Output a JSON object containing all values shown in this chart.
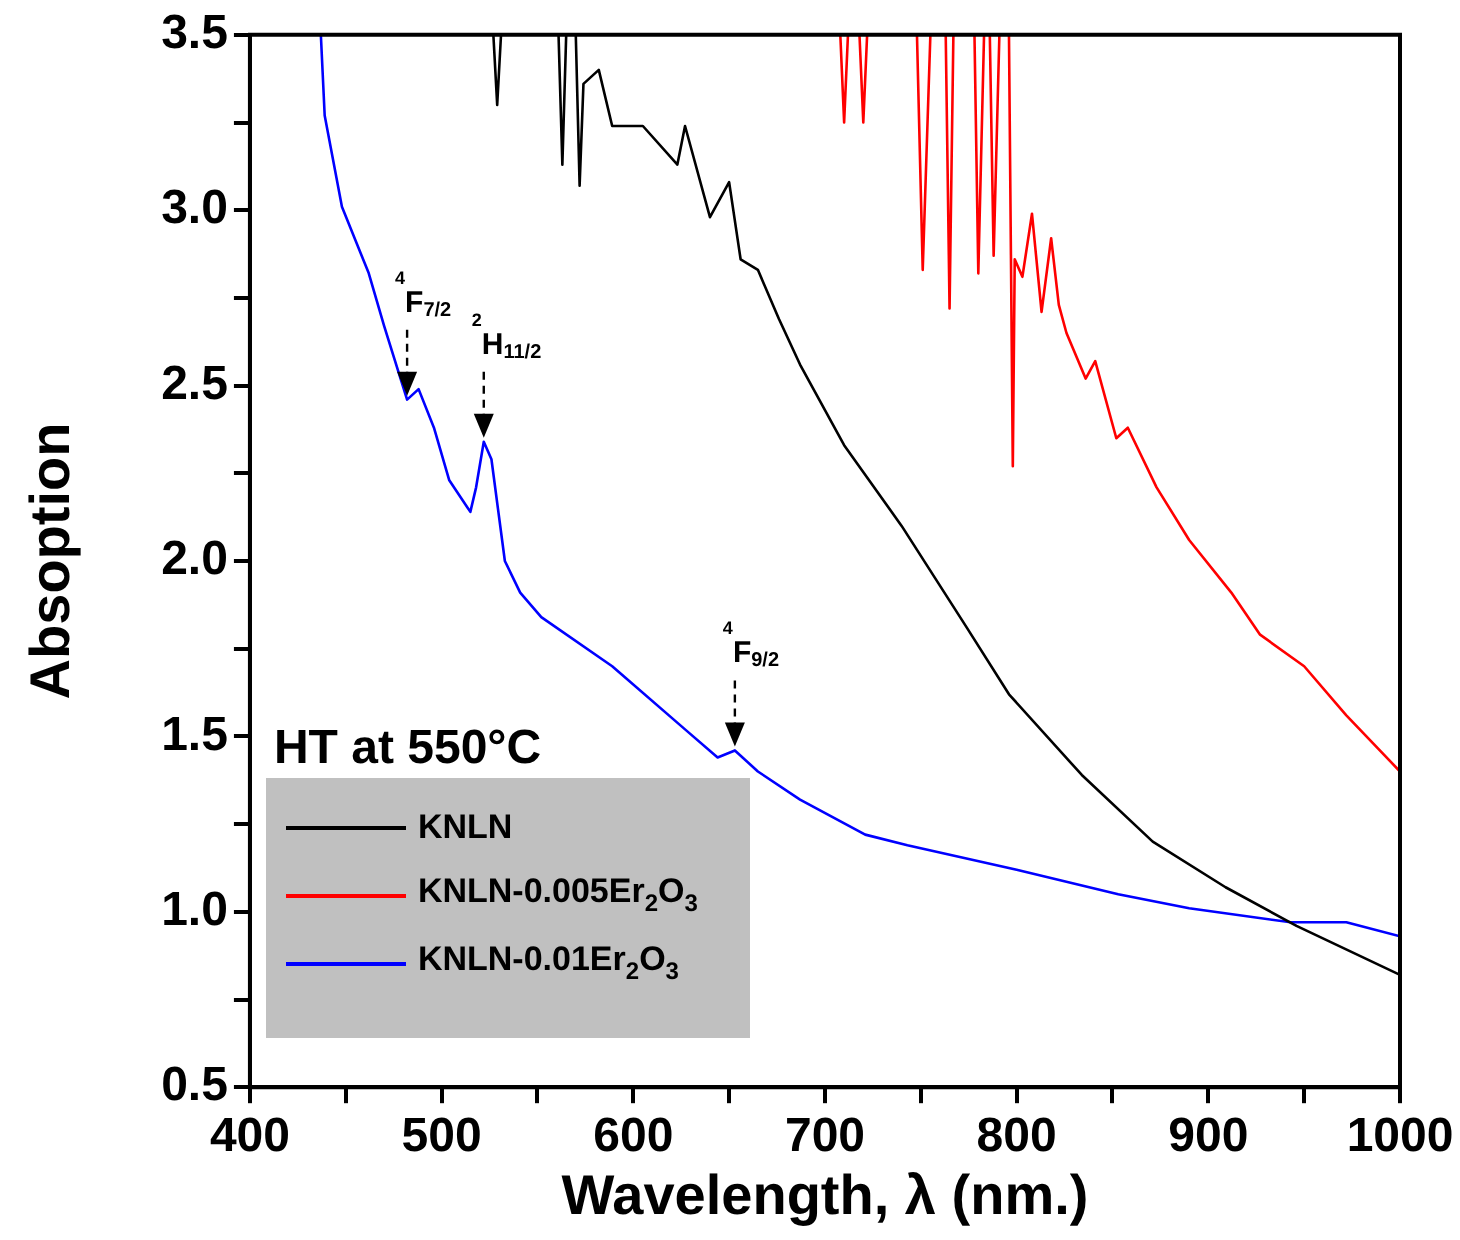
{
  "chart_data": {
    "type": "line",
    "xlabel": "Wavelength, λ (nm.)",
    "ylabel": "Absoption",
    "xlim": [
      400,
      1000
    ],
    "xticks": [
      400,
      {
        "value": 450,
        "label": null
      },
      500,
      {
        "value": 550,
        "label": null
      },
      600,
      {
        "value": 650,
        "label": null
      },
      700,
      {
        "value": 750,
        "label": null
      },
      800,
      {
        "value": 850,
        "label": null
      },
      900,
      {
        "value": 950,
        "label": null
      },
      1000
    ],
    "ylim": [
      0.5,
      3.5
    ],
    "yticks": [
      0.5,
      {
        "value": 0.75,
        "label": null
      },
      {
        "value": 1,
        "label": "1.0"
      },
      {
        "value": 1.25,
        "label": null
      },
      1.5,
      {
        "value": 1.75,
        "label": null
      },
      {
        "value": 2,
        "label": "2.0"
      },
      {
        "value": 2.25,
        "label": null
      },
      2.5,
      {
        "value": 2.75,
        "label": null
      },
      {
        "value": 3,
        "label": "3.0"
      },
      {
        "value": 3.25,
        "label": null
      },
      3.5
    ],
    "grid": false,
    "legend": "bottom left",
    "marker": "none",
    "line_style": "solid",
    "series": [
      {
        "name": "KNLN",
        "color": "#000000",
        "x": [
          527,
          529,
          531,
          561,
          563,
          565,
          570,
          572,
          574,
          582,
          589,
          605,
          623,
          627,
          640,
          650,
          656,
          665,
          676,
          687,
          710,
          740,
          774,
          796,
          834,
          871,
          909,
          946,
          1000
        ],
        "values": [
          3.5,
          3.3,
          3.5,
          3.5,
          3.13,
          3.5,
          3.5,
          3.07,
          3.36,
          3.4,
          3.24,
          3.24,
          3.13,
          3.24,
          2.98,
          3.08,
          2.86,
          2.83,
          2.69,
          2.56,
          2.33,
          2.1,
          1.81,
          1.62,
          1.39,
          1.2,
          1.07,
          0.96,
          0.82
        ]
      },
      {
        "name": "KNLN-0.005Er$_{2}$O$_{3}$",
        "color": "#ff0000",
        "x": [
          708,
          710,
          712,
          718,
          720,
          722,
          748,
          751,
          755,
          763,
          765,
          767,
          778,
          780,
          783,
          786,
          788,
          791,
          796,
          798,
          799,
          803,
          808,
          813,
          818,
          822,
          826,
          836,
          841,
          852,
          858,
          873,
          890,
          912,
          927,
          950,
          972,
          1000
        ],
        "values": [
          3.5,
          3.25,
          3.5,
          3.5,
          3.25,
          3.5,
          3.5,
          2.83,
          3.5,
          3.5,
          2.72,
          3.5,
          3.5,
          2.82,
          3.5,
          3.5,
          2.87,
          3.5,
          3.5,
          2.27,
          2.86,
          2.81,
          2.99,
          2.71,
          2.92,
          2.73,
          2.65,
          2.52,
          2.57,
          2.35,
          2.38,
          2.21,
          2.06,
          1.91,
          1.79,
          1.7,
          1.56,
          1.4
        ]
      },
      {
        "name": "KNLN-0.01Er$_{2}$O$_{3}$",
        "color": "#0000ff",
        "x": [
          437,
          439,
          448,
          462,
          470,
          482,
          488,
          496,
          504,
          515,
          518,
          522,
          526,
          533,
          541,
          552,
          589,
          627,
          644,
          653,
          665,
          687,
          721,
          743,
          800,
          853,
          890,
          943,
          972,
          1000
        ],
        "values": [
          3.5,
          3.27,
          3.01,
          2.82,
          2.67,
          2.46,
          2.49,
          2.38,
          2.23,
          2.14,
          2.21,
          2.34,
          2.29,
          2.0,
          1.91,
          1.84,
          1.7,
          1.52,
          1.44,
          1.46,
          1.4,
          1.32,
          1.22,
          1.19,
          1.12,
          1.05,
          1.01,
          0.97,
          0.97,
          0.93
        ]
      }
    ],
    "annotations": [
      {
        "text": "$^{4}$F$_{7/2}$",
        "x": 482,
        "y": 2.46
      },
      {
        "text": "$^{2}$H$_{11/2}$",
        "x": 522,
        "y": 2.34
      },
      {
        "text": "$^{4}$F$_{9/2}$",
        "x": 653,
        "y": 1.46
      },
      "HT at 550°C"
    ]
  }
}
